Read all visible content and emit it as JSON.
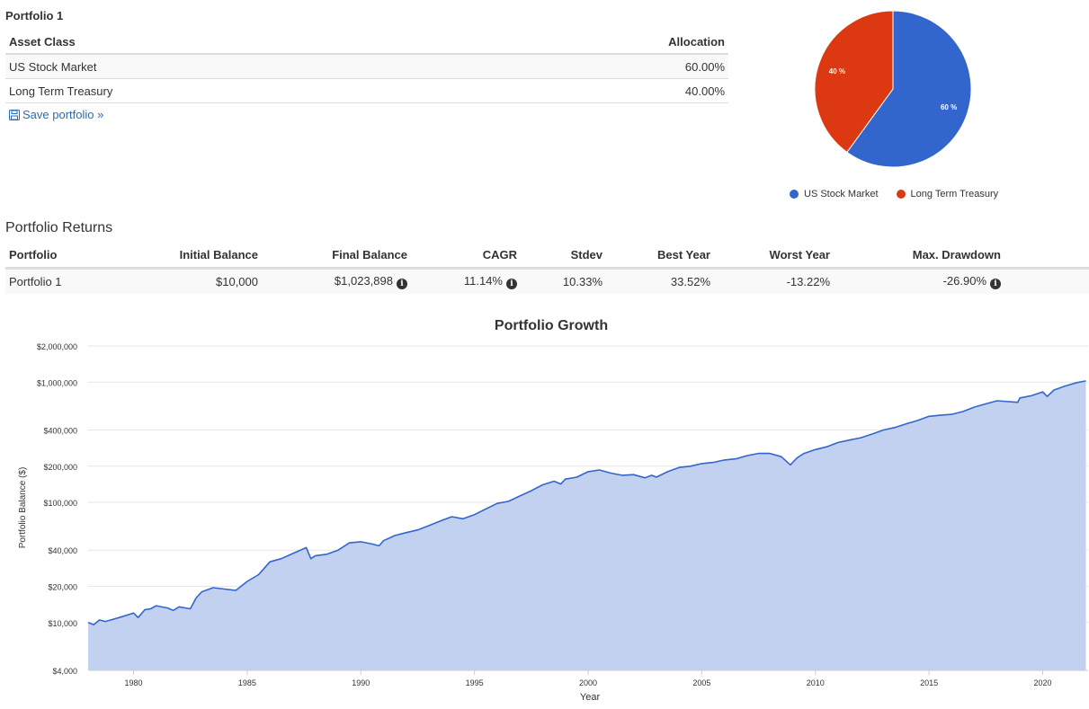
{
  "portfolio": {
    "heading": "Portfolio 1",
    "table": {
      "col_asset": "Asset Class",
      "col_allocation": "Allocation",
      "rows": [
        {
          "asset": "US Stock Market",
          "allocation": "60.00%"
        },
        {
          "asset": "Long Term Treasury",
          "allocation": "40.00%"
        }
      ]
    },
    "save_link": "Save portfolio »",
    "save_icon": "floppy-disk-icon"
  },
  "pie": {
    "slices": [
      {
        "name": "US Stock Market",
        "value": 60,
        "label": "60 %",
        "color": "#3366cc"
      },
      {
        "name": "Long Term Treasury",
        "value": 40,
        "label": "40 %",
        "color": "#dc3912"
      }
    ]
  },
  "returns": {
    "heading": "Portfolio Returns",
    "columns": [
      "Portfolio",
      "Initial Balance",
      "Final Balance",
      "CAGR",
      "Stdev",
      "Best Year",
      "Worst Year",
      "Max. Drawdown"
    ],
    "row": {
      "portfolio": "Portfolio 1",
      "initial_balance": "$10,000",
      "final_balance": "$1,023,898",
      "cagr": "11.14%",
      "stdev": "10.33%",
      "best_year": "33.52%",
      "worst_year": "-13.22%",
      "max_drawdown": "-26.90%"
    },
    "info_icon": "info-circle-icon"
  },
  "chart_data": {
    "type": "area",
    "title": "Portfolio Growth",
    "xlabel": "Year",
    "ylabel": "Portfolio Balance ($)",
    "y_scale": "log",
    "xlim": [
      1978,
      2022
    ],
    "ylim": [
      4000,
      2000000
    ],
    "x_ticks": [
      1980,
      1985,
      1990,
      1995,
      2000,
      2005,
      2010,
      2015,
      2020
    ],
    "y_ticks": [
      {
        "value": 4000,
        "label": "$4,000"
      },
      {
        "value": 10000,
        "label": "$10,000"
      },
      {
        "value": 20000,
        "label": "$20,000"
      },
      {
        "value": 40000,
        "label": "$40,000"
      },
      {
        "value": 100000,
        "label": "$100,000"
      },
      {
        "value": 200000,
        "label": "$200,000"
      },
      {
        "value": 400000,
        "label": "$400,000"
      },
      {
        "value": 1000000,
        "label": "$1,000,000"
      },
      {
        "value": 2000000,
        "label": "$2,000,000"
      }
    ],
    "grid": true,
    "line_color": "#3366cc",
    "fill_color": "#c2d1ef",
    "series": [
      {
        "x": [
          1978.0,
          1978.25,
          1978.5,
          1978.75,
          1979.0,
          1979.5,
          1980.0,
          1980.2,
          1980.5,
          1980.75,
          1981.0,
          1981.5,
          1981.75,
          1982.0,
          1982.5,
          1982.75,
          1983.0,
          1983.5,
          1984.0,
          1984.5,
          1985.0,
          1985.5,
          1986.0,
          1986.5,
          1987.0,
          1987.6,
          1987.8,
          1988.0,
          1988.5,
          1989.0,
          1989.5,
          1990.0,
          1990.5,
          1990.8,
          1991.0,
          1991.5,
          1992.0,
          1992.5,
          1993.0,
          1993.5,
          1994.0,
          1994.5,
          1995.0,
          1995.5,
          1996.0,
          1996.5,
          1997.0,
          1997.5,
          1998.0,
          1998.5,
          1998.8,
          1999.0,
          1999.5,
          2000.0,
          2000.5,
          2001.0,
          2001.5,
          2002.0,
          2002.5,
          2002.8,
          2003.0,
          2003.5,
          2004.0,
          2004.5,
          2005.0,
          2005.5,
          2006.0,
          2006.5,
          2007.0,
          2007.5,
          2008.0,
          2008.5,
          2008.9,
          2009.2,
          2009.5,
          2010.0,
          2010.5,
          2011.0,
          2011.5,
          2012.0,
          2012.5,
          2013.0,
          2013.5,
          2014.0,
          2014.5,
          2015.0,
          2015.5,
          2016.0,
          2016.5,
          2017.0,
          2017.5,
          2018.0,
          2018.9,
          2019.0,
          2019.5,
          2020.0,
          2020.2,
          2020.5,
          2021.0,
          2021.5,
          2021.9
        ],
        "y": [
          10000,
          9600,
          10500,
          10200,
          10500,
          11200,
          12000,
          11000,
          12800,
          13000,
          13800,
          13200,
          12600,
          13500,
          13000,
          16000,
          18000,
          19500,
          19000,
          18500,
          22000,
          25000,
          32000,
          34000,
          37500,
          42000,
          34000,
          36000,
          37000,
          40000,
          46000,
          47000,
          45000,
          43500,
          48000,
          53000,
          56000,
          59000,
          64000,
          70000,
          76000,
          73000,
          79000,
          88000,
          98000,
          102000,
          113000,
          125000,
          140000,
          150000,
          142000,
          156000,
          162000,
          180000,
          186000,
          175000,
          168000,
          170000,
          160000,
          168000,
          162000,
          180000,
          195000,
          200000,
          210000,
          215000,
          225000,
          230000,
          245000,
          255000,
          255000,
          240000,
          205000,
          235000,
          255000,
          275000,
          290000,
          315000,
          330000,
          345000,
          370000,
          400000,
          420000,
          450000,
          480000,
          520000,
          530000,
          540000,
          570000,
          620000,
          660000,
          700000,
          680000,
          740000,
          770000,
          830000,
          760000,
          860000,
          930000,
          990000,
          1023898
        ]
      }
    ]
  }
}
